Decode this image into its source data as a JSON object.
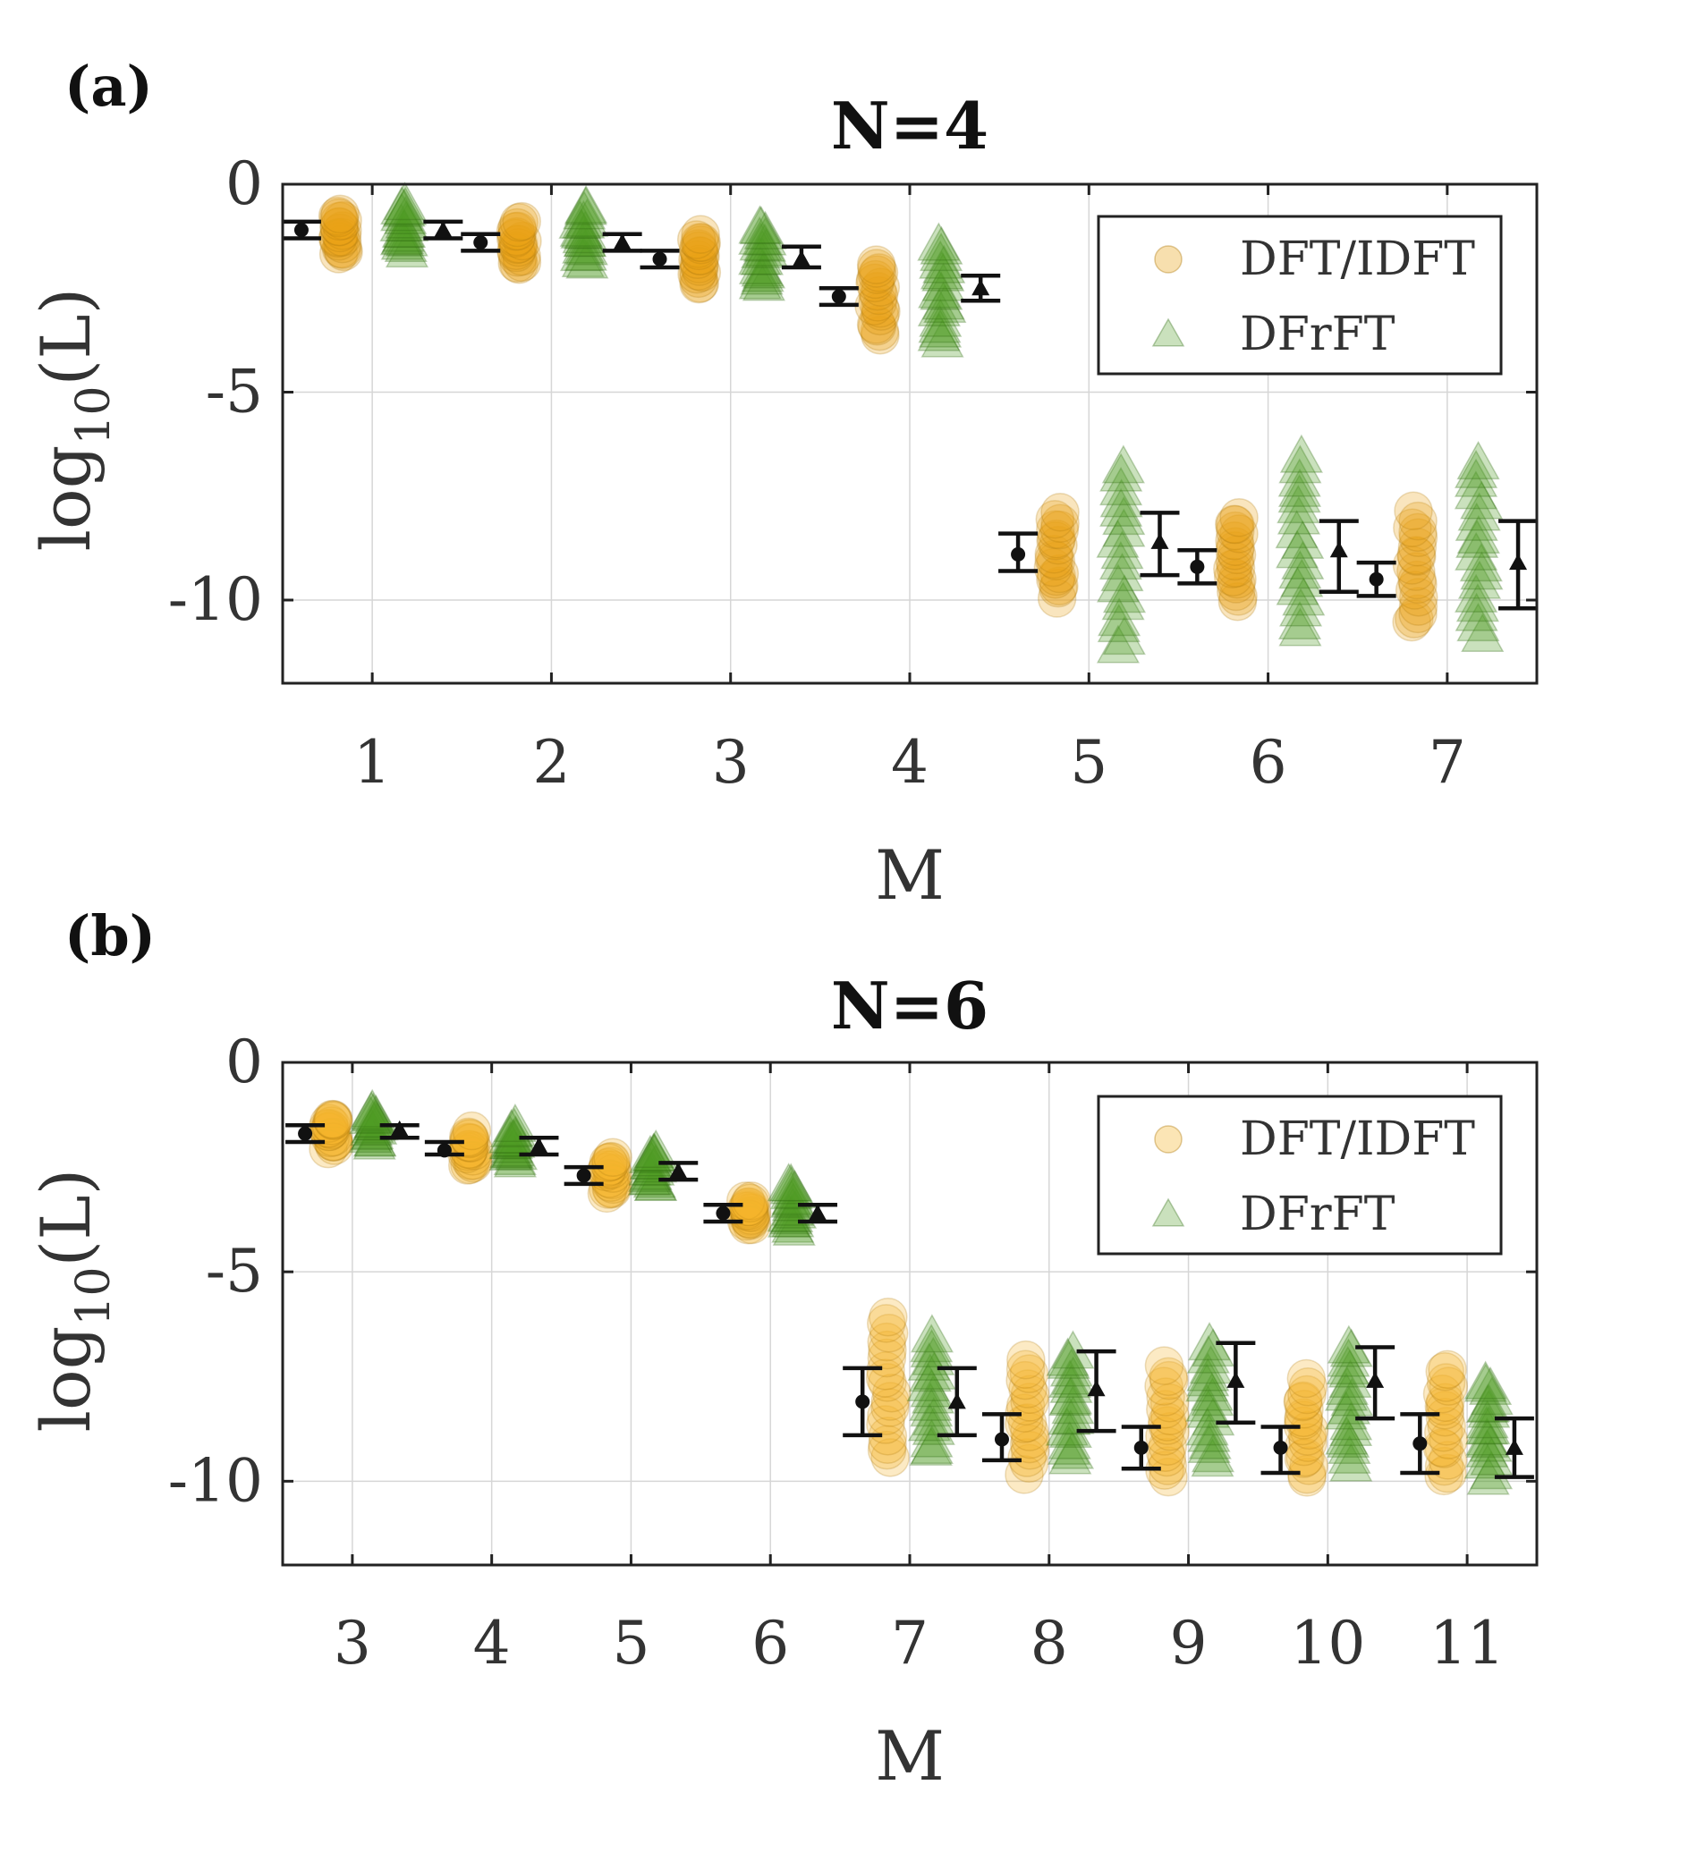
{
  "chart_data": [
    {
      "type": "scatter",
      "panel_label": "(a)",
      "title": "N=4",
      "xlabel": "M",
      "ylabel_base": "log",
      "ylabel_sub": "10",
      "ylabel_arg": "(L)",
      "categories": [
        "1",
        "2",
        "3",
        "4",
        "5",
        "6",
        "7"
      ],
      "x": [
        1,
        2,
        3,
        4,
        5,
        6,
        7
      ],
      "xlim": [
        0.5,
        7.5
      ],
      "ylim": [
        -12,
        0
      ],
      "yticks": [
        0,
        -5,
        -10
      ],
      "ytick_labels": [
        "0",
        "-5",
        "-10"
      ],
      "grid": true,
      "legend": "top-right",
      "series": [
        {
          "name": "DFT/IDFT",
          "marker": "circle",
          "color": "#E8A317",
          "mean": [
            -1.1,
            -1.4,
            -1.8,
            -2.7,
            -8.9,
            -9.2,
            -9.5
          ],
          "err_low": [
            -1.3,
            -1.6,
            -2.0,
            -2.9,
            -9.3,
            -9.6,
            -9.9
          ],
          "err_high": [
            -0.9,
            -1.2,
            -1.6,
            -2.5,
            -8.4,
            -8.8,
            -9.1
          ],
          "scatter_min": [
            -1.7,
            -2.0,
            -2.4,
            -3.6,
            -9.9,
            -10.0,
            -10.6
          ],
          "scatter_max": [
            -0.7,
            -0.9,
            -1.2,
            -1.9,
            -7.9,
            -8.0,
            -7.9
          ]
        },
        {
          "name": "DFrFT",
          "marker": "triangle",
          "color": "#4E9A23",
          "mean": [
            -1.1,
            -1.4,
            -1.8,
            -2.5,
            -8.6,
            -8.8,
            -9.1
          ],
          "err_low": [
            -1.3,
            -1.6,
            -2.0,
            -2.8,
            -9.4,
            -9.8,
            -10.2
          ],
          "err_high": [
            -0.9,
            -1.2,
            -1.5,
            -2.2,
            -7.9,
            -8.1,
            -8.1
          ],
          "scatter_min": [
            -1.6,
            -1.9,
            -2.5,
            -3.8,
            -11.2,
            -10.8,
            -10.9
          ],
          "scatter_max": [
            -0.5,
            -0.6,
            -1.0,
            -1.4,
            -6.8,
            -6.6,
            -6.7
          ]
        }
      ]
    },
    {
      "type": "scatter",
      "panel_label": "(b)",
      "title": "N=6",
      "xlabel": "M",
      "ylabel_base": "log",
      "ylabel_sub": "10",
      "ylabel_arg": "(L)",
      "categories": [
        "3",
        "4",
        "5",
        "6",
        "7",
        "8",
        "9",
        "10",
        "11"
      ],
      "x": [
        3,
        4,
        5,
        6,
        7,
        8,
        9,
        10,
        11
      ],
      "xlim": [
        2.5,
        11.5
      ],
      "ylim": [
        -12,
        0
      ],
      "yticks": [
        0,
        -5,
        -10
      ],
      "ytick_labels": [
        "0",
        "-5",
        "-10"
      ],
      "grid": true,
      "legend": "top-right",
      "series": [
        {
          "name": "DFT/IDFT",
          "marker": "circle",
          "color": "#F4B52A",
          "mean": [
            -1.7,
            -2.1,
            -2.7,
            -3.6,
            -8.1,
            -9.0,
            -9.2,
            -9.2,
            -9.1
          ],
          "err_low": [
            -1.9,
            -2.2,
            -2.9,
            -3.8,
            -8.9,
            -9.5,
            -9.7,
            -9.8,
            -9.8
          ],
          "err_high": [
            -1.5,
            -1.9,
            -2.5,
            -3.4,
            -7.3,
            -8.4,
            -8.7,
            -8.7,
            -8.4
          ],
          "scatter_min": [
            -2.0,
            -2.5,
            -3.1,
            -3.9,
            -9.5,
            -9.8,
            -9.9,
            -9.9,
            -9.9
          ],
          "scatter_max": [
            -1.3,
            -1.7,
            -2.3,
            -3.3,
            -6.1,
            -7.1,
            -7.3,
            -7.6,
            -7.3
          ]
        },
        {
          "name": "DFrFT",
          "marker": "triangle",
          "color": "#4E9A23",
          "mean": [
            -1.6,
            -2.0,
            -2.6,
            -3.6,
            -8.1,
            -7.8,
            -7.6,
            -7.6,
            -9.2
          ],
          "err_low": [
            -1.8,
            -2.2,
            -2.8,
            -3.8,
            -8.9,
            -8.8,
            -8.6,
            -8.5,
            -9.9
          ],
          "err_high": [
            -1.5,
            -1.8,
            -2.4,
            -3.4,
            -7.3,
            -6.9,
            -6.7,
            -6.8,
            -8.5
          ],
          "scatter_min": [
            -1.9,
            -2.3,
            -3.0,
            -4.0,
            -9.3,
            -9.5,
            -9.5,
            -9.6,
            -9.9
          ],
          "scatter_max": [
            -1.2,
            -1.6,
            -2.1,
            -2.9,
            -6.6,
            -6.9,
            -6.8,
            -6.8,
            -7.6
          ]
        }
      ]
    }
  ]
}
